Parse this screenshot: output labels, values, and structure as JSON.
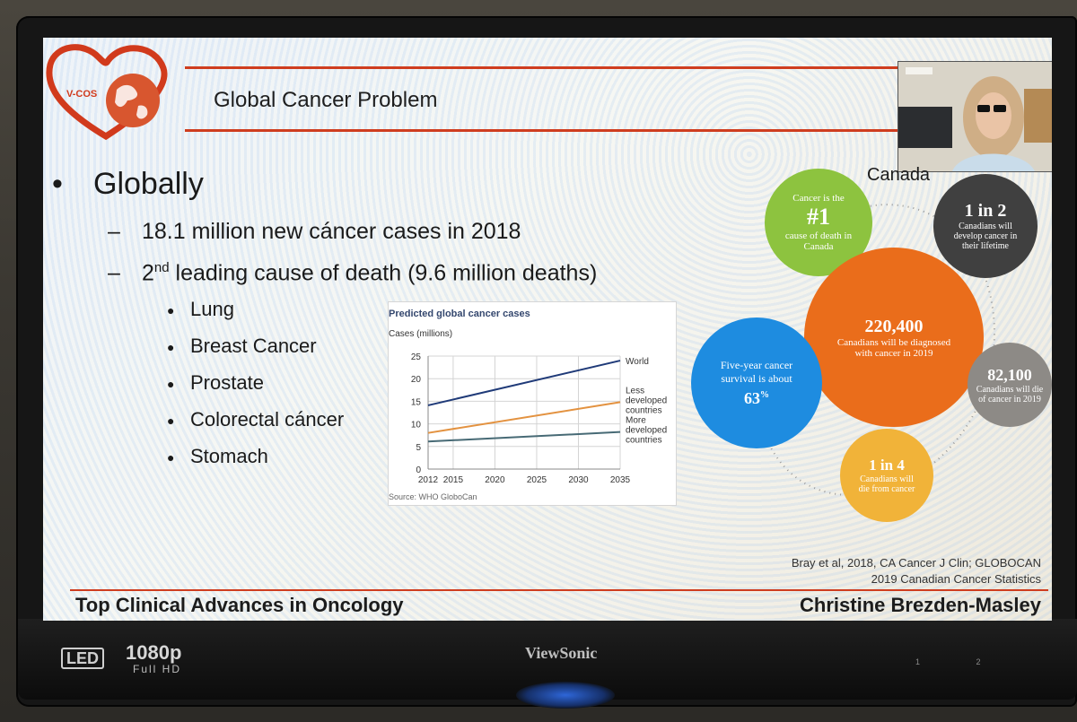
{
  "slide": {
    "logo_text": "V-COS",
    "title": "Global Cancer Problem",
    "bullet_main": "Globally",
    "sub1": "18.1 million new cáncer cases in 2018",
    "sub2_pre": "2",
    "sub2_sup": "nd",
    "sub2_post": " leading cause of death (9.6 million deaths)",
    "list": [
      "Lung",
      "Breast Cancer",
      "Prostate",
      "Colorectal cáncer",
      "Stomach"
    ],
    "canada_title": "Canada",
    "circles": {
      "green": {
        "top": "Cancer is the",
        "big": "#1",
        "bottom": "cause of death in Canada",
        "color": "#8dc33f"
      },
      "dark": {
        "big": "1 in 2",
        "bottom": "Canadians will develop cancer in their lifetime",
        "color": "#404040"
      },
      "orange": {
        "big": "220,400",
        "bottom": "Canadians will be diagnosed with cancer in 2019",
        "color": "#ea6d1b"
      },
      "blue": {
        "top": "Five-year cancer survival is about",
        "big": "63",
        "suffix": "%",
        "color": "#1e8ce0"
      },
      "grey": {
        "big": "82,100",
        "bottom": "Canadians will die of cancer in 2019",
        "color": "#8d8a86"
      },
      "yellow": {
        "big": "1 in 4",
        "bottom": "Canadians will die from cancer",
        "color": "#f1b339"
      }
    },
    "citation1": "Bray et al, 2018, CA Cancer J Clin; GLOBOCAN",
    "citation2": "2019 Canadian Cancer Statistics",
    "footer_left": "Top Clinical Advances in Oncology",
    "footer_right": "Christine Brezden-Masley"
  },
  "monitor": {
    "led": "LED",
    "resolution": "1080p",
    "resolution_sub": "Full HD",
    "brand": "ViewSonic",
    "buttons": "1 2"
  },
  "chart_data": {
    "type": "line",
    "title": "Predicted global cancer cases",
    "ylabel": "Cases (millions)",
    "xlabel": "",
    "source": "Source: WHO GloboCan",
    "x": [
      2012,
      2035
    ],
    "xticks": [
      2012,
      2015,
      2020,
      2025,
      2030,
      2035
    ],
    "yticks": [
      0,
      5,
      10,
      15,
      20,
      25
    ],
    "ylim": [
      0,
      25
    ],
    "xlim": [
      2012,
      2035
    ],
    "series": [
      {
        "name": "World",
        "values": [
          14.1,
          24
        ],
        "color": "#1f3a78"
      },
      {
        "name": "Less developed countries",
        "values": [
          8,
          14.8
        ],
        "color": "#e39240"
      },
      {
        "name": "More developed countries",
        "values": [
          6.1,
          8.2
        ],
        "color": "#476a75"
      }
    ],
    "grid": true
  }
}
